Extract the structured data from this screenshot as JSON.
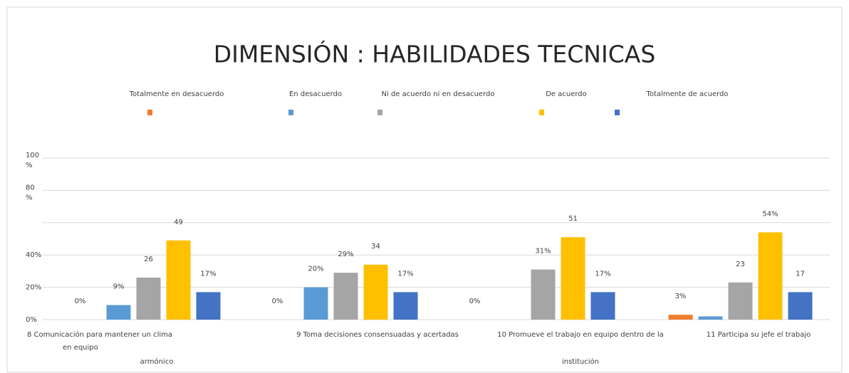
{
  "chart_data": {
    "type": "bar",
    "title": "DIMENSIÓN : HABILIDADES TECNICAS",
    "categories": [
      [
        "8 Comunicación para mantener un clima",
        "en equipo",
        "armónico"
      ],
      [
        "9 Toma decisiones consensuadas y acertadas"
      ],
      [
        "10 Promueve el trabajo en equipo dentro de la",
        "institución"
      ],
      [
        "11 Participa su jefe el trabajo"
      ]
    ],
    "series": [
      {
        "name": "Totalmente en desacuerdo",
        "color": "#ed7d31",
        "values": [
          0,
          0,
          0,
          3
        ],
        "value_labels": [
          "0%",
          "0%",
          "0%",
          "3%"
        ]
      },
      {
        "name": "En desacuerdo",
        "color": "#5b9bd5",
        "values": [
          9,
          20,
          null,
          2
        ],
        "value_labels": [
          "9%",
          "20%",
          null,
          null
        ]
      },
      {
        "name": "Ni de acuerdo ni en desacuerdo",
        "color": "#a5a5a5",
        "values": [
          26,
          29,
          31,
          23
        ],
        "value_labels": [
          "26",
          "29%",
          "31%",
          "23"
        ]
      },
      {
        "name": "De acuerdo",
        "color": "#ffc000",
        "values": [
          49,
          34,
          51,
          54
        ],
        "value_labels": [
          "49",
          "34",
          "51",
          "54%"
        ]
      },
      {
        "name": "Totalmente de acuerdo",
        "color": "#4472c4",
        "values": [
          17,
          17,
          17,
          17
        ],
        "value_labels": [
          "17%",
          "17%",
          "17%",
          "17"
        ]
      }
    ],
    "ylim": [
      0,
      100
    ],
    "yticks": [
      {
        "value": 0,
        "label": "0%"
      },
      {
        "value": 20,
        "label": "20%"
      },
      {
        "value": 40,
        "label": "40%"
      },
      {
        "value": 60,
        "label": null
      },
      {
        "value": 80,
        "label": [
          "80",
          "%"
        ]
      },
      {
        "value": 100,
        "label": [
          "100",
          "%"
        ]
      }
    ],
    "grid": true,
    "legend": "top"
  }
}
